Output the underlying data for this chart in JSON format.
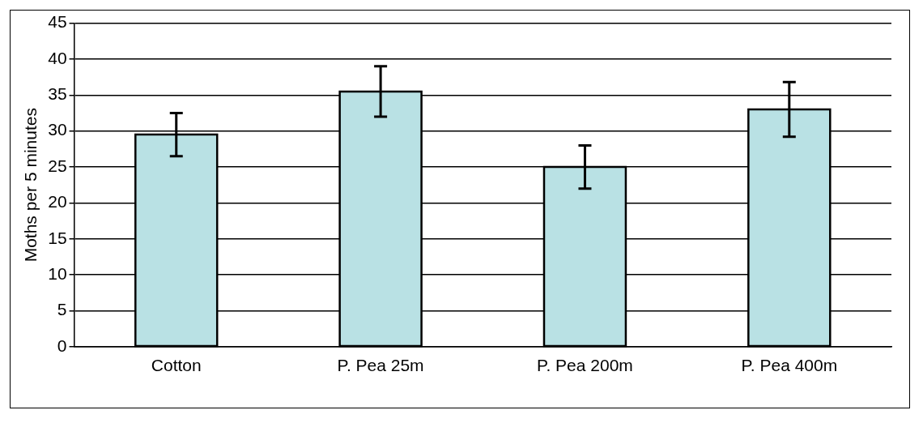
{
  "chart_data": {
    "type": "bar",
    "ylabel": "Moths per 5 minutes",
    "categories": [
      "Cotton",
      "P. Pea 25m",
      "P. Pea 200m",
      "P. Pea 400m"
    ],
    "values": [
      29.5,
      35.5,
      25,
      33
    ],
    "color": "#b9e1e4",
    "errors": [
      3,
      3.5,
      3,
      3.8
    ],
    "ylim": [
      0,
      45
    ],
    "yticks": [
      0,
      5,
      10,
      15,
      20,
      25,
      30,
      35,
      40,
      45
    ],
    "grid": "y",
    "legend": false
  }
}
